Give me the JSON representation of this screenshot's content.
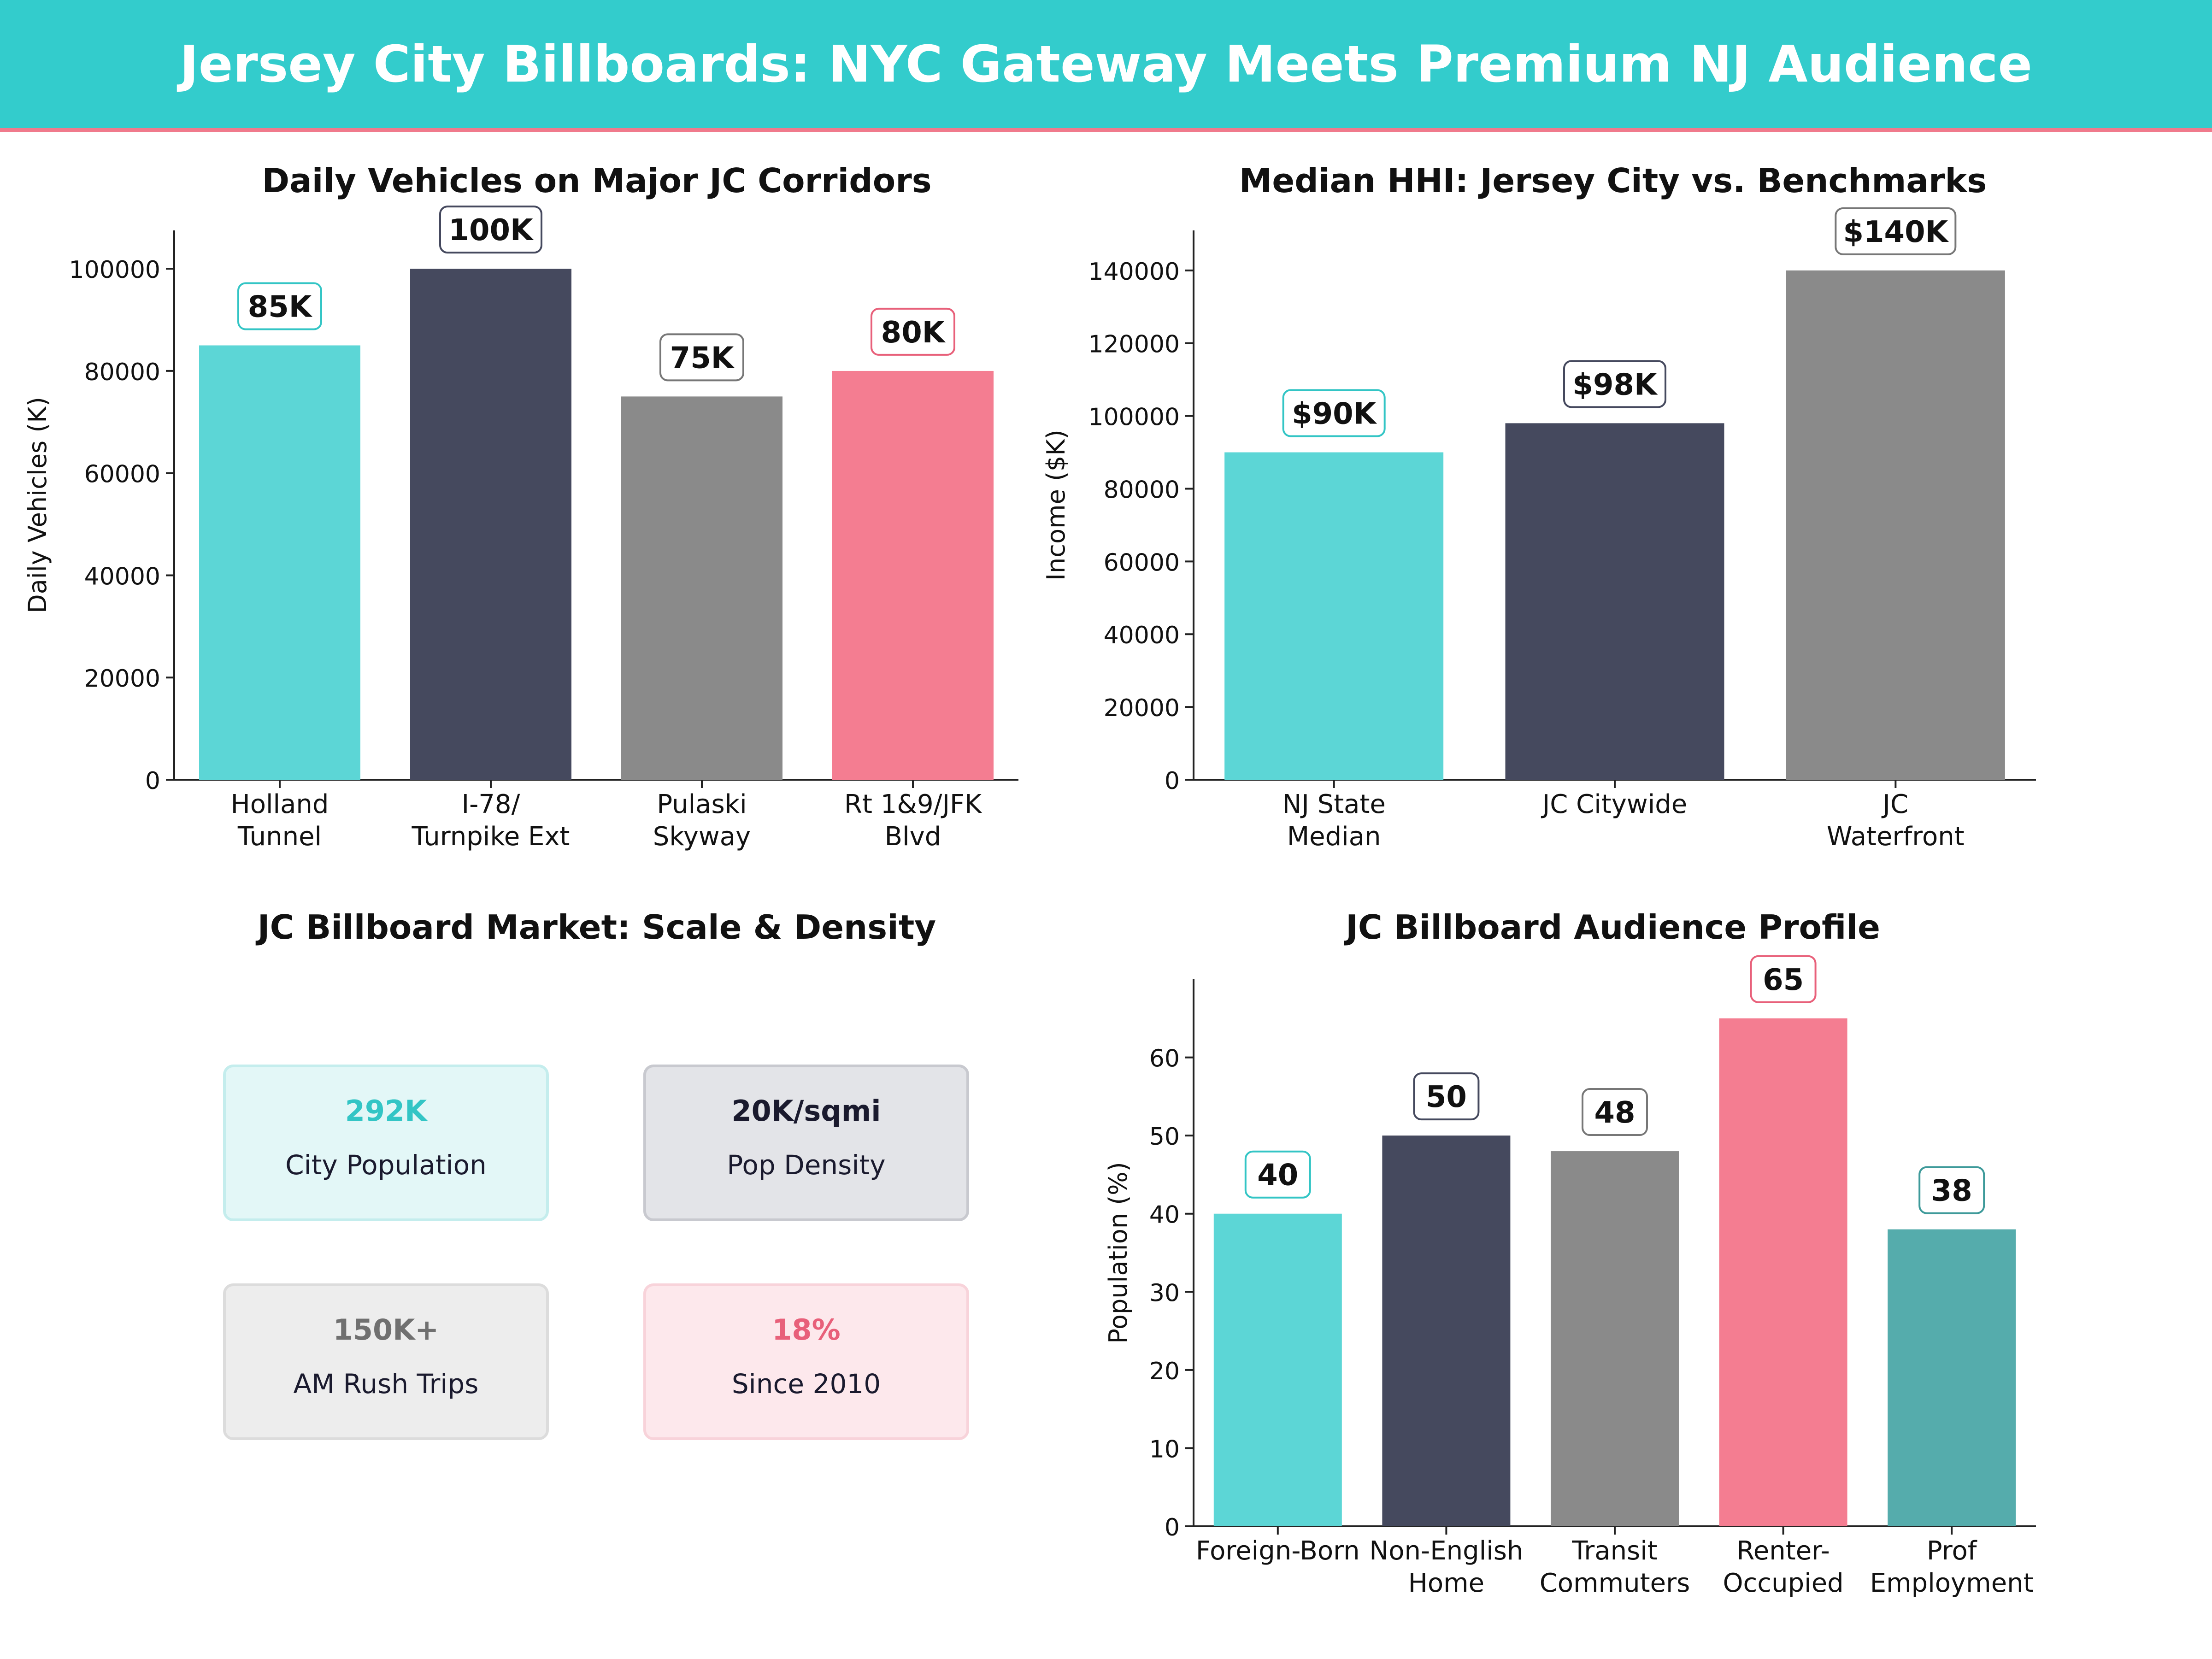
{
  "header": {
    "title": "Jersey City Billboards: NYC Gateway Meets Premium NJ Audience"
  },
  "colors": {
    "teal": "#5CD6D6",
    "navy": "#45495E",
    "gray": "#8A8A8A",
    "pink": "#F47D91",
    "darkteal": "#55ACAC",
    "banner": "#33CCCC"
  },
  "panels": {
    "traffic_title": "Daily Vehicles on Major JC Corridors",
    "income_title": "Median HHI: Jersey City vs. Benchmarks",
    "market_title": "JC Billboard Market: Scale & Density",
    "audience_title": "JC Billboard Audience Profile"
  },
  "market": {
    "cards": [
      {
        "value": "292K",
        "label": "City Population",
        "accent": "#33C5C5",
        "bg": "#E3F7F7",
        "border": "#C4EDED"
      },
      {
        "value": "20K/sqmi",
        "label": "Pop Density",
        "accent": "#1a1a2e",
        "bg": "#E3E4E8",
        "border": "#C8C9CF"
      },
      {
        "value": "150K+",
        "label": "AM Rush Trips",
        "accent": "#707070",
        "bg": "#EDEDED",
        "border": "#DCDCDC"
      },
      {
        "value": "18%",
        "label": "Since 2010",
        "accent": "#E8607A",
        "bg": "#FDE8EC",
        "border": "#F8D3DA"
      }
    ]
  },
  "chart_data": [
    {
      "type": "bar",
      "title": "Daily Vehicles on Major JC Corridors",
      "xlabel": "",
      "ylabel": "Daily Vehicles (K)",
      "categories": [
        [
          "Holland",
          "Tunnel"
        ],
        [
          "I-78/",
          "Turnpike Ext"
        ],
        [
          "Pulaski",
          "Skyway"
        ],
        [
          "Rt 1&9/JFK",
          "Blvd"
        ]
      ],
      "values": [
        85000,
        100000,
        75000,
        80000
      ],
      "data_labels": [
        "85K",
        "100K",
        "75K",
        "80K"
      ],
      "colors": [
        "#5CD6D6",
        "#45495E",
        "#8A8A8A",
        "#F47D91"
      ],
      "label_borders": [
        "#33C5C5",
        "#45495E",
        "#777777",
        "#E8607A"
      ],
      "yticks": [
        0,
        20000,
        40000,
        60000,
        80000,
        100000
      ],
      "ylim": [
        0,
        107500
      ],
      "grid": false
    },
    {
      "type": "bar",
      "title": "Median HHI: Jersey City vs. Benchmarks",
      "xlabel": "",
      "ylabel": "Income ($K)",
      "categories": [
        [
          "NJ State",
          "Median"
        ],
        [
          "JC Citywide"
        ],
        [
          "JC",
          "Waterfront"
        ]
      ],
      "values": [
        90000,
        98000,
        140000
      ],
      "data_labels": [
        "$90K",
        "$98K",
        "$140K"
      ],
      "colors": [
        "#5CD6D6",
        "#45495E",
        "#8A8A8A"
      ],
      "label_borders": [
        "#33C5C5",
        "#45495E",
        "#777777"
      ],
      "yticks": [
        0,
        20000,
        40000,
        60000,
        80000,
        100000,
        120000,
        140000
      ],
      "ylim": [
        0,
        151000
      ],
      "grid": false
    },
    {
      "type": "bar",
      "title": "JC Billboard Audience Profile",
      "xlabel": "",
      "ylabel": "Population (%)",
      "categories": [
        [
          "Foreign-Born"
        ],
        [
          "Non-English",
          "Home"
        ],
        [
          "Transit",
          "Commuters"
        ],
        [
          "Renter-",
          "Occupied"
        ],
        [
          "Prof",
          "Employment"
        ]
      ],
      "values": [
        40,
        50,
        48,
        65,
        38
      ],
      "data_labels": [
        "40",
        "50",
        "48",
        "65",
        "38"
      ],
      "colors": [
        "#5CD6D6",
        "#45495E",
        "#8A8A8A",
        "#F47D91",
        "#55ACAC"
      ],
      "label_borders": [
        "#33C5C5",
        "#45495E",
        "#777777",
        "#E8607A",
        "#3E9A9A"
      ],
      "yticks": [
        0,
        10,
        20,
        30,
        40,
        50,
        60
      ],
      "ylim": [
        0,
        70
      ],
      "grid": false
    }
  ]
}
